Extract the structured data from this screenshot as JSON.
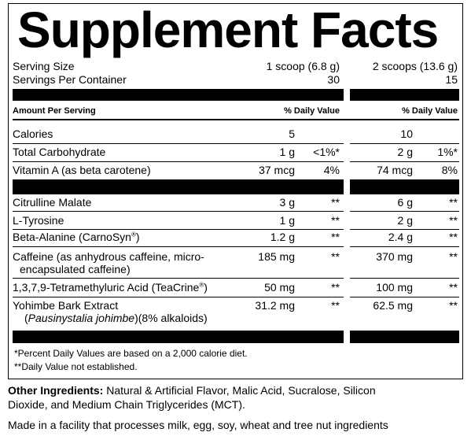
{
  "title": "Supplement Facts",
  "serving_size": {
    "label": "Serving Size",
    "col1": "1 scoop (6.8 g)",
    "col2": "2 scoops (13.6 g)"
  },
  "servings_per_container": {
    "label": "Servings Per Container",
    "col1": "30",
    "col2": "15"
  },
  "header": {
    "amount": "Amount Per Serving",
    "dv1": "% Daily Value",
    "dv2": "% Daily Value"
  },
  "rows": [
    {
      "name": "Calories",
      "amt1": "5",
      "amt2": "10"
    },
    {
      "name": "Total Carbohydrate",
      "amt1": "1 g",
      "dv1": "<1%*",
      "amt2": "2 g",
      "dv2": "1%*"
    },
    {
      "name": "Vitamin A (as beta carotene)",
      "amt1": "37 mcg",
      "dv1": "4%",
      "amt2": "74 mcg",
      "dv2": "8%"
    },
    {
      "name": "Citrulline Malate",
      "amt1": "3 g",
      "dv1": "**",
      "amt2": "6 g",
      "dv2": "**"
    },
    {
      "name": "L-Tyrosine",
      "amt1": "1 g",
      "dv1": "**",
      "amt2": "2 g",
      "dv2": "**"
    },
    {
      "name": [
        "Beta-Alanine (CarnoSyn",
        "®",
        ")"
      ],
      "amt1": "1.2 g",
      "dv1": "**",
      "amt2": "2.4 g",
      "dv2": "**"
    },
    {
      "name": [
        "Caffeine (as anhydrous caffeine, micro-",
        "encapsulated caffeine)"
      ],
      "amt1": "185 mg",
      "dv1": "**",
      "amt2": "370 mg",
      "dv2": "**"
    },
    {
      "name": [
        "1,3,7,9-Tetramethyluric Acid (TeaCrine",
        "®",
        ")"
      ],
      "amt1": "50 mg",
      "dv1": "**",
      "amt2": "100 mg",
      "dv2": "**"
    },
    {
      "name": [
        "Yohimbe Bark Extract",
        "(",
        "Pausinystalia johimbe",
        ")(8% alkaloids)"
      ],
      "amt1": "31.2 mg",
      "dv1": "**",
      "amt2": "62.5 mg",
      "dv2": "**"
    }
  ],
  "footnotes": [
    "*Percent Daily Values are based on a 2,000 calorie diet.",
    "**Daily Value not established."
  ],
  "other_ingredients": {
    "label": "Other Ingredients:",
    "text": "Natural & Artificial Flavor, Malic Acid, Sucralose, Silicon Dioxide, and Medium Chain Triglycerides (MCT)."
  },
  "facility": "Made in a facility that processes milk, egg, soy, wheat and tree nut ingredients"
}
